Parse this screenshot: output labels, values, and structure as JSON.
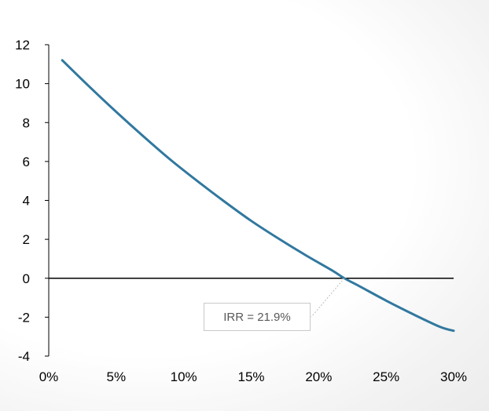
{
  "chart_data": {
    "type": "line",
    "title": "",
    "xlabel": "",
    "ylabel": "",
    "xlim": [
      0,
      30
    ],
    "ylim": [
      -4,
      12
    ],
    "x_ticks": [
      "0%",
      "5%",
      "10%",
      "15%",
      "20%",
      "25%",
      "30%"
    ],
    "y_ticks": [
      "12",
      "10",
      "8",
      "6",
      "4",
      "2",
      "0",
      "-2",
      "-4"
    ],
    "grid": false,
    "series": [
      {
        "color": "#31789f",
        "x": [
          1,
          3,
          5,
          7,
          9,
          11,
          13,
          15,
          17,
          19,
          21,
          21.9,
          23,
          25,
          27,
          29,
          30
        ],
        "y": [
          11.2,
          9.85,
          8.55,
          7.3,
          6.1,
          5.0,
          3.95,
          2.95,
          2.05,
          1.2,
          0.4,
          0.0,
          -0.4,
          -1.15,
          -1.85,
          -2.5,
          -2.7
        ]
      }
    ],
    "annotation": {
      "text": "IRR = 21.9%",
      "x": 21.9,
      "y": 0
    }
  }
}
